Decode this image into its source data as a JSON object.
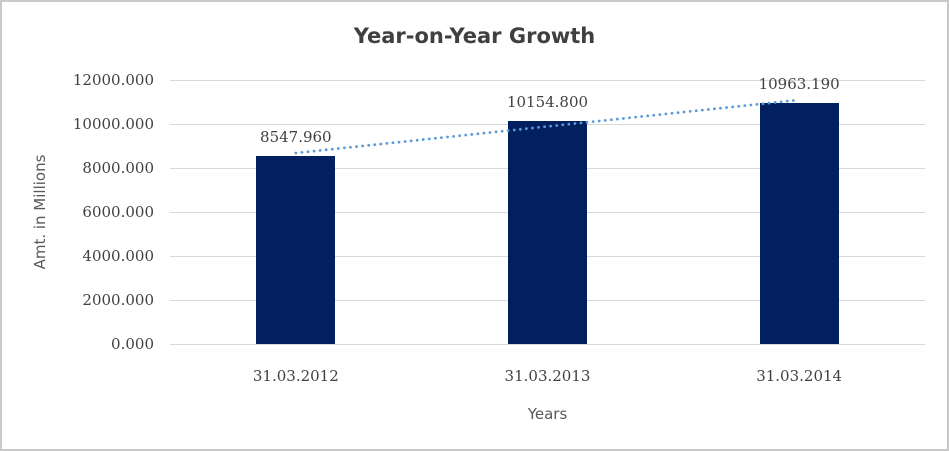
{
  "chart_data": {
    "type": "bar",
    "title": "Year-on-Year Growth",
    "xlabel": "Years",
    "ylabel": "Amt. in Millions",
    "categories": [
      "31.03.2012",
      "31.03.2013",
      "31.03.2014"
    ],
    "values": [
      8547.96,
      10154.8,
      10963.19
    ],
    "data_labels": [
      "8547.960",
      "10154.800",
      "10963.190"
    ],
    "ylim": [
      0,
      12000
    ],
    "ytick_step": 2000,
    "ytick_labels": [
      "0.000",
      "2000.000",
      "4000.000",
      "6000.000",
      "8000.000",
      "10000.000",
      "12000.000"
    ],
    "grid": true,
    "legend": "none",
    "trendline": {
      "type": "linear",
      "style": "dotted"
    },
    "colors": {
      "bar": "#022060",
      "trendline": "#5b9bd5",
      "gridline": "#d9d9d9",
      "tick_text": "#404040",
      "title_text": "#404040",
      "axis_title_text": "#595959",
      "frame_border": "#c9c9c9",
      "background": "#ffffff"
    }
  }
}
